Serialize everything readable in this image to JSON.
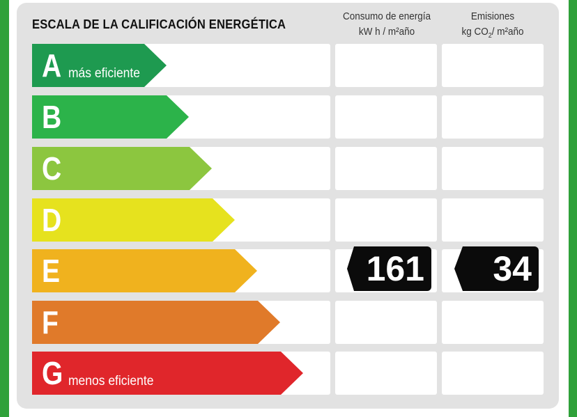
{
  "header": {
    "title": "ESCALA DE LA CALIFICACIÓN ENERGÉTICA",
    "energy_col": {
      "line1": "Consumo de energía",
      "line2": "kW h / m²año"
    },
    "emissions_col": {
      "line1": "Emisiones",
      "line2_pre": "kg CO",
      "line2_sub": "2",
      "line2_post": "/ m²año"
    }
  },
  "ratings": [
    {
      "letter": "A",
      "subtitle": "más eficiente",
      "color": "#1e9a50"
    },
    {
      "letter": "B",
      "subtitle": "",
      "color": "#2cb34a"
    },
    {
      "letter": "C",
      "subtitle": "",
      "color": "#8cc63f"
    },
    {
      "letter": "D",
      "subtitle": "",
      "color": "#e6e21e"
    },
    {
      "letter": "E",
      "subtitle": "",
      "color": "#f0b21e"
    },
    {
      "letter": "F",
      "subtitle": "",
      "color": "#e07a2a"
    },
    {
      "letter": "G",
      "subtitle": "menos eficiente",
      "color": "#e0262b"
    }
  ],
  "result": {
    "rating": "E",
    "energy_consumption": "161",
    "emissions": "34"
  },
  "colors": {
    "frame": "#2fa13a",
    "panel": "#e2e2e2",
    "badge": "#0b0b0b"
  }
}
